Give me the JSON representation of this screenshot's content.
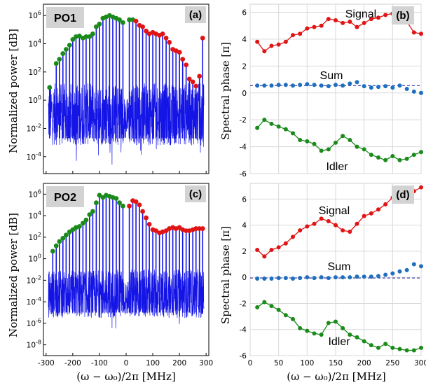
{
  "y_label_left": "Normalized power [dB]",
  "y_label_right": "Spectral phase [π]",
  "x_label": "(ω − ω₀)/2π [MHz]",
  "colors": {
    "spectrum": "#1414e6",
    "green": "#1a8a1a",
    "red": "#e01414",
    "signal_line": "#e01414",
    "idler_line": "#1a8a1a",
    "sum_points": "#1f6fc0",
    "sum_line": "#1a1aa0",
    "grid": "#d9d9d9",
    "label_box": "#d3d3d3"
  },
  "chart_data": [
    {
      "type": "spectrum",
      "panel": "(a)",
      "label": "PO1",
      "xlim": [
        -310,
        310
      ],
      "ylim_log": [
        -5.2,
        6.8
      ],
      "yticks": [
        "10^6",
        "10^4",
        "10^2",
        "10^0",
        "10^-2",
        "10^-4"
      ],
      "ytick_values_log": [
        6,
        4,
        2,
        0,
        -2,
        -4
      ],
      "comb_spacing_mhz": 12.5,
      "noise_floor_log": [
        -3.2,
        1.2
      ],
      "center_gap_mhz": [
        -12,
        12
      ],
      "green_markers": [
        {
          "x": -287,
          "y_log": 0.9
        },
        {
          "x": -262,
          "y_log": 2.6
        },
        {
          "x": -250,
          "y_log": 2.9
        },
        {
          "x": -237,
          "y_log": 3.3
        },
        {
          "x": -225,
          "y_log": 3.6
        },
        {
          "x": -212,
          "y_log": 3.9
        },
        {
          "x": -200,
          "y_log": 4.3
        },
        {
          "x": -188,
          "y_log": 4.5
        },
        {
          "x": -175,
          "y_log": 4.55
        },
        {
          "x": -162,
          "y_log": 4.4
        },
        {
          "x": -150,
          "y_log": 4.5
        },
        {
          "x": -137,
          "y_log": 4.5
        },
        {
          "x": -125,
          "y_log": 4.7
        },
        {
          "x": -112,
          "y_log": 5.2
        },
        {
          "x": -100,
          "y_log": 5.4
        },
        {
          "x": -87,
          "y_log": 5.8
        },
        {
          "x": -75,
          "y_log": 5.9
        },
        {
          "x": -62,
          "y_log": 6.0
        },
        {
          "x": -50,
          "y_log": 5.9
        },
        {
          "x": -37,
          "y_log": 5.8
        },
        {
          "x": -25,
          "y_log": 5.7
        },
        {
          "x": -12,
          "y_log": 5.5
        },
        {
          "x": 12,
          "y_log": 5.7
        },
        {
          "x": 25,
          "y_log": 5.7
        }
      ],
      "red_markers": [
        {
          "x": 37,
          "y_log": 5.6
        },
        {
          "x": 50,
          "y_log": 5.3
        },
        {
          "x": 62,
          "y_log": 5.2
        },
        {
          "x": 75,
          "y_log": 4.9
        },
        {
          "x": 87,
          "y_log": 4.7
        },
        {
          "x": 100,
          "y_log": 4.8
        },
        {
          "x": 112,
          "y_log": 4.7
        },
        {
          "x": 125,
          "y_log": 4.6
        },
        {
          "x": 137,
          "y_log": 4.7
        },
        {
          "x": 150,
          "y_log": 4.4
        },
        {
          "x": 162,
          "y_log": 4.1
        },
        {
          "x": 175,
          "y_log": 3.6
        },
        {
          "x": 187,
          "y_log": 3.5
        },
        {
          "x": 200,
          "y_log": 3.4
        },
        {
          "x": 212,
          "y_log": 2.9
        },
        {
          "x": 225,
          "y_log": 2.5
        },
        {
          "x": 237,
          "y_log": 1.5
        },
        {
          "x": 250,
          "y_log": 1.3
        },
        {
          "x": 262,
          "y_log": 1.0
        },
        {
          "x": 275,
          "y_log": 1.7
        },
        {
          "x": 287,
          "y_log": 4.4
        }
      ]
    },
    {
      "type": "line",
      "panel": "(b)",
      "xlim": [
        0,
        300
      ],
      "ylim": [
        -6,
        6.6
      ],
      "yticks": [
        -6,
        -4,
        -2,
        0,
        2,
        4,
        6
      ],
      "xticks": [
        0,
        50,
        100,
        150,
        200,
        250,
        300
      ],
      "annotations": [
        "Signal",
        "Sum",
        "Idler"
      ],
      "sum_level": 0.55,
      "series": [
        {
          "name": "Signal",
          "x": [
            12.5,
            25,
            37.5,
            50,
            62.5,
            75,
            87.5,
            100,
            112.5,
            125,
            137.5,
            150,
            162.5,
            175,
            187.5,
            200,
            212.5,
            225,
            237.5,
            250,
            262.5,
            275,
            287.5,
            300
          ],
          "values": [
            3.8,
            3.1,
            3.5,
            3.6,
            3.8,
            4.3,
            4.4,
            4.8,
            4.9,
            5.0,
            5.5,
            5.4,
            5.2,
            5.3,
            4.9,
            5.2,
            5.5,
            5.6,
            5.8,
            5.9,
            5.5,
            5.3,
            4.5,
            4.4
          ]
        },
        {
          "name": "Idler",
          "x": [
            12.5,
            25,
            37.5,
            50,
            62.5,
            75,
            87.5,
            100,
            112.5,
            125,
            137.5,
            150,
            162.5,
            175,
            187.5,
            200,
            212.5,
            225,
            237.5,
            250,
            262.5,
            275,
            287.5,
            300
          ],
          "values": [
            -2.6,
            -2.0,
            -2.3,
            -2.5,
            -2.7,
            -3.0,
            -3.5,
            -3.6,
            -3.8,
            -4.3,
            -4.2,
            -3.7,
            -3.2,
            -3.5,
            -4.0,
            -4.2,
            -4.6,
            -4.8,
            -5.0,
            -4.7,
            -5.0,
            -4.9,
            -4.6,
            -4.4
          ]
        },
        {
          "name": "Sum",
          "x": [
            12.5,
            25,
            37.5,
            50,
            62.5,
            75,
            87.5,
            100,
            112.5,
            125,
            137.5,
            150,
            162.5,
            175,
            187.5,
            200,
            212.5,
            225,
            237.5,
            250,
            262.5,
            275,
            287.5,
            300
          ],
          "values": [
            0.55,
            0.55,
            0.55,
            0.6,
            0.6,
            0.55,
            0.6,
            0.65,
            0.6,
            0.55,
            0.5,
            0.6,
            0.55,
            0.7,
            0.8,
            0.5,
            0.4,
            0.45,
            0.5,
            0.4,
            0.55,
            0.3,
            0.1,
            0.0
          ]
        }
      ]
    },
    {
      "type": "spectrum",
      "panel": "(c)",
      "label": "PO2",
      "xlim": [
        -310,
        310
      ],
      "ylim_log": [
        -9,
        7
      ],
      "yticks": [
        "10^6",
        "10^4",
        "10^2",
        "10^0",
        "10^-2",
        "10^-4",
        "10^-6",
        "10^-8"
      ],
      "ytick_values_log": [
        6,
        4,
        2,
        0,
        -2,
        -4,
        -6,
        -8
      ],
      "comb_spacing_mhz": 12.5,
      "noise_floor_log": [
        -5.5,
        -1.0
      ],
      "center_gap_mhz": [
        -10,
        10
      ],
      "green_markers": [
        {
          "x": -275,
          "y_log": 0.7
        },
        {
          "x": -262,
          "y_log": 1.2
        },
        {
          "x": -250,
          "y_log": 1.6
        },
        {
          "x": -237,
          "y_log": 1.9
        },
        {
          "x": -225,
          "y_log": 2.2
        },
        {
          "x": -212,
          "y_log": 2.5
        },
        {
          "x": -200,
          "y_log": 2.7
        },
        {
          "x": -188,
          "y_log": 2.9
        },
        {
          "x": -175,
          "y_log": 3.0
        },
        {
          "x": -162,
          "y_log": 3.3
        },
        {
          "x": -150,
          "y_log": 3.6
        },
        {
          "x": -137,
          "y_log": 4.1
        },
        {
          "x": -125,
          "y_log": 4.4
        },
        {
          "x": -112,
          "y_log": 5.2
        },
        {
          "x": -100,
          "y_log": 5.9
        },
        {
          "x": -87,
          "y_log": 5.7
        },
        {
          "x": -75,
          "y_log": 5.9
        },
        {
          "x": -62,
          "y_log": 5.8
        },
        {
          "x": -50,
          "y_log": 5.7
        },
        {
          "x": -37,
          "y_log": 5.6
        },
        {
          "x": -25,
          "y_log": 5.2
        },
        {
          "x": -12,
          "y_log": 4.9
        }
      ],
      "red_markers": [
        {
          "x": 12,
          "y_log": 4.9
        },
        {
          "x": 25,
          "y_log": 5.4
        },
        {
          "x": 37,
          "y_log": 5.3
        },
        {
          "x": 50,
          "y_log": 5.0
        },
        {
          "x": 62,
          "y_log": 4.4
        },
        {
          "x": 75,
          "y_log": 3.8
        },
        {
          "x": 87,
          "y_log": 3.2
        },
        {
          "x": 100,
          "y_log": 2.7
        },
        {
          "x": 112,
          "y_log": 2.6
        },
        {
          "x": 125,
          "y_log": 2.4
        },
        {
          "x": 137,
          "y_log": 2.5
        },
        {
          "x": 150,
          "y_log": 2.6
        },
        {
          "x": 162,
          "y_log": 2.8
        },
        {
          "x": 175,
          "y_log": 2.9
        },
        {
          "x": 187,
          "y_log": 2.8
        },
        {
          "x": 200,
          "y_log": 2.9
        },
        {
          "x": 212,
          "y_log": 2.7
        },
        {
          "x": 225,
          "y_log": 2.6
        },
        {
          "x": 237,
          "y_log": 2.6
        },
        {
          "x": 250,
          "y_log": 2.7
        },
        {
          "x": 262,
          "y_log": 2.8
        },
        {
          "x": 275,
          "y_log": 2.8
        },
        {
          "x": 287,
          "y_log": 2.8
        }
      ]
    },
    {
      "type": "line",
      "panel": "(d)",
      "xlim": [
        0,
        300
      ],
      "ylim": [
        -6,
        7.2
      ],
      "yticks": [
        -6,
        -4,
        -2,
        0,
        2,
        4,
        6
      ],
      "xticks": [
        0,
        50,
        100,
        150,
        200,
        250,
        300
      ],
      "xticklabels": [
        "0",
        "50",
        "100",
        "150",
        "200",
        "250",
        "300"
      ],
      "annotations": [
        "Signal",
        "Sum",
        "Idler"
      ],
      "sum_level": -0.05,
      "series": [
        {
          "name": "Signal",
          "x": [
            12.5,
            25,
            37.5,
            50,
            62.5,
            75,
            87.5,
            100,
            112.5,
            125,
            137.5,
            150,
            162.5,
            175,
            187.5,
            200,
            212.5,
            225,
            237.5,
            250,
            262.5,
            275,
            287.5,
            300
          ],
          "values": [
            2.1,
            1.6,
            2.1,
            2.3,
            2.6,
            3.1,
            3.6,
            3.9,
            4.1,
            4.5,
            4.3,
            4.0,
            3.6,
            3.5,
            4.1,
            4.7,
            4.9,
            5.2,
            5.6,
            6.1,
            6.3,
            6.4,
            6.6,
            6.9
          ]
        },
        {
          "name": "Idler",
          "x": [
            12.5,
            25,
            37.5,
            50,
            62.5,
            75,
            87.5,
            100,
            112.5,
            125,
            137.5,
            150,
            162.5,
            175,
            187.5,
            200,
            212.5,
            225,
            237.5,
            250,
            262.5,
            275,
            287.5,
            300
          ],
          "values": [
            -2.3,
            -1.9,
            -2.2,
            -2.5,
            -2.9,
            -3.2,
            -3.9,
            -4.1,
            -4.3,
            -4.4,
            -3.5,
            -3.4,
            -3.9,
            -4.4,
            -4.6,
            -4.9,
            -5.2,
            -5.4,
            -5.1,
            -5.4,
            -5.5,
            -5.6,
            -5.6,
            -5.4
          ]
        },
        {
          "name": "Sum",
          "x": [
            12.5,
            25,
            37.5,
            50,
            62.5,
            75,
            87.5,
            100,
            112.5,
            125,
            137.5,
            150,
            162.5,
            175,
            187.5,
            200,
            212.5,
            225,
            237.5,
            250,
            262.5,
            275,
            287.5,
            300
          ],
          "values": [
            -0.1,
            -0.1,
            -0.1,
            -0.05,
            -0.05,
            -0.1,
            -0.05,
            0.0,
            -0.05,
            0.0,
            -0.05,
            0.0,
            0.0,
            0.0,
            0.05,
            0.05,
            0.05,
            0.1,
            0.2,
            0.3,
            0.45,
            0.55,
            1.0,
            0.85
          ]
        }
      ]
    }
  ],
  "ticks_bottom_left": [
    "-300",
    "-200",
    "-100",
    "0",
    "100",
    "200",
    "300"
  ],
  "tick_values_bottom_left": [
    -300,
    -200,
    -100,
    0,
    100,
    200,
    300
  ]
}
